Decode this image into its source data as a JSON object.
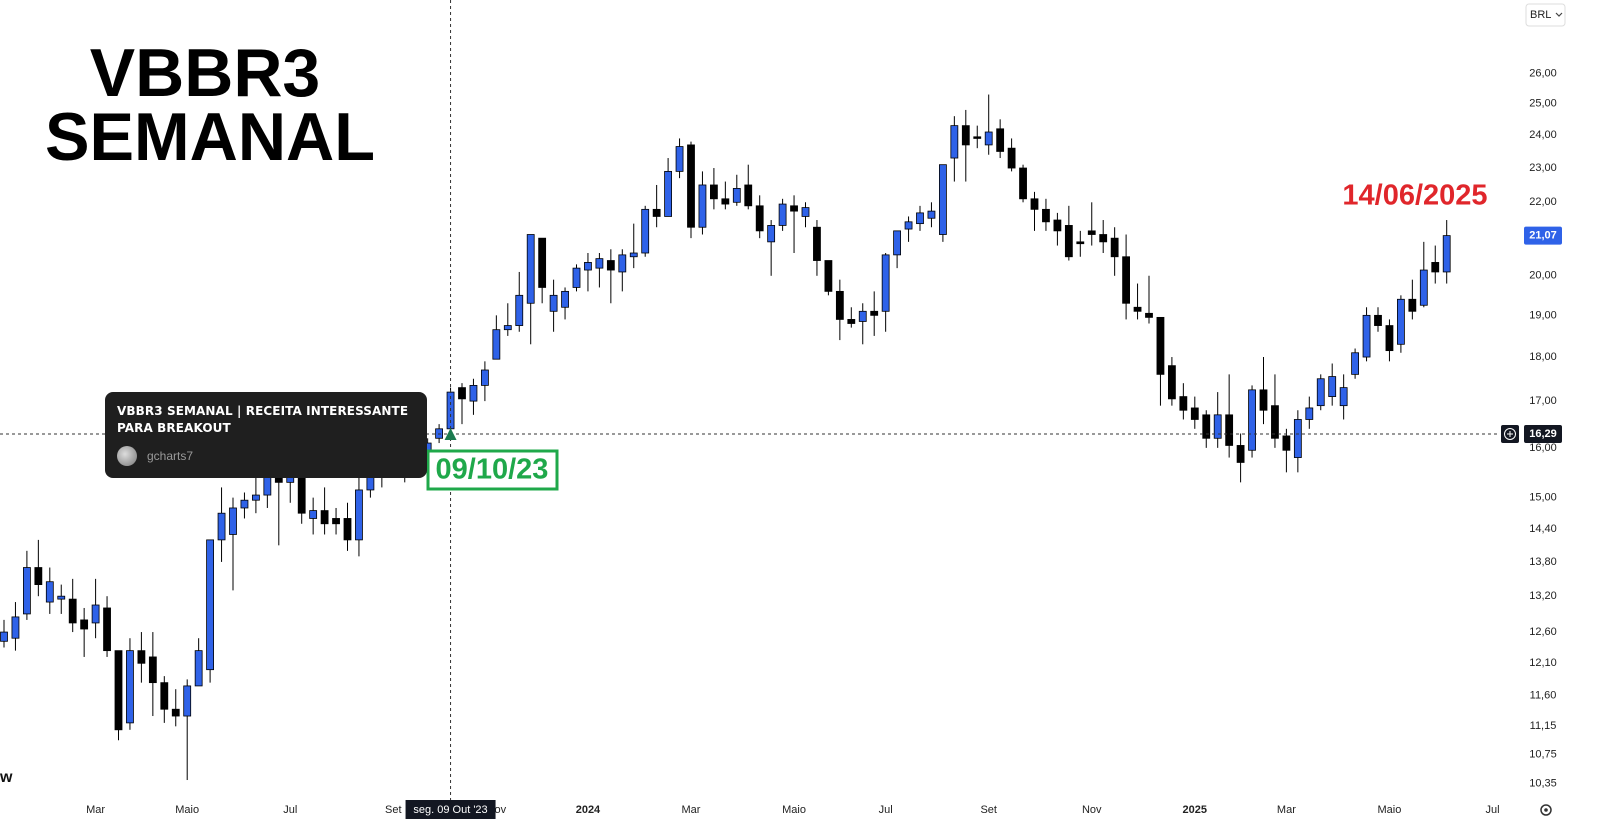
{
  "chart_data": {
    "type": "candlestick",
    "title": "VBBR3",
    "subtitle": "SEMANAL",
    "watermark": "w",
    "currency": "BRL",
    "log_scale": true,
    "grid": false,
    "up_color": "#2f62e8",
    "down_color": "#000000",
    "categories": [
      null,
      null,
      null,
      null,
      null,
      null,
      null,
      null,
      "Mar",
      null,
      null,
      null,
      null,
      null,
      null,
      null,
      "Maio",
      null,
      null,
      null,
      null,
      null,
      null,
      null,
      null,
      "Jul",
      null,
      null,
      null,
      null,
      null,
      null,
      null,
      null,
      "Set",
      null,
      null,
      null,
      null,
      null,
      null,
      null,
      null,
      "Nov",
      null,
      null,
      null,
      null,
      null,
      null,
      null,
      "2024",
      null,
      null,
      null,
      null,
      null,
      null,
      null,
      null,
      "Mar",
      null,
      null,
      null,
      null,
      null,
      null,
      null,
      null,
      "Maio",
      null,
      null,
      null,
      null,
      null,
      null,
      null,
      "Jul",
      null,
      null,
      null,
      null,
      null,
      null,
      null,
      null,
      "Set",
      null,
      null,
      null,
      null,
      null,
      null,
      null,
      null,
      "Nov",
      null,
      null,
      null,
      null,
      null,
      null,
      null,
      null,
      "2025",
      null,
      null,
      null,
      null,
      null,
      null,
      null,
      "Mar",
      null,
      null,
      null,
      null,
      null,
      null,
      null,
      null,
      "Maio",
      null,
      null,
      null,
      null,
      null,
      null,
      null,
      null,
      "Jul"
    ],
    "open": [
      12.45,
      12.5,
      12.9,
      13.7,
      13.1,
      13.15,
      13.15,
      12.8,
      12.75,
      13.0,
      12.3,
      11.2,
      12.3,
      12.2,
      11.8,
      11.4,
      11.3,
      11.75,
      12.0,
      14.2,
      14.3,
      14.8,
      14.95,
      15.05,
      15.45,
      15.3,
      15.4,
      14.6,
      14.75,
      14.6,
      14.6,
      14.2,
      15.15,
      15.4,
      15.6,
      15.8,
      15.6,
      15.9,
      16.2,
      16.4,
      17.3,
      17.0,
      17.35,
      17.95,
      18.65,
      18.75,
      19.3,
      21.0,
      19.1,
      19.2,
      19.7,
      20.15,
      20.2,
      20.4,
      20.1,
      20.5,
      20.6,
      21.8,
      21.6,
      22.9,
      23.7,
      21.3,
      22.5,
      22.1,
      22.0,
      22.5,
      21.9,
      20.9,
      21.35,
      21.9,
      21.6,
      21.3,
      20.4,
      19.6,
      18.9,
      18.85,
      19.1,
      19.1,
      20.55,
      21.25,
      21.4,
      21.55,
      21.1,
      23.3,
      24.3,
      23.95,
      23.7,
      24.2,
      23.6,
      23.0,
      22.1,
      21.8,
      21.5,
      21.35,
      20.9,
      21.2,
      21.1,
      21.0,
      20.5,
      19.2,
      19.05,
      18.95,
      17.8,
      17.1,
      16.85,
      16.7,
      16.2,
      16.7,
      16.05,
      15.95,
      17.25,
      16.9,
      16.25,
      15.8,
      16.6,
      16.9,
      17.1,
      16.9,
      17.6,
      18.0,
      19.0,
      18.75,
      18.3,
      19.4,
      19.25,
      20.35,
      20.1,
      null,
      null,
      null,
      null
    ],
    "high": [
      12.8,
      13.1,
      14.0,
      14.2,
      13.7,
      13.4,
      13.5,
      13.0,
      13.5,
      13.2,
      12.3,
      12.5,
      12.6,
      12.6,
      11.9,
      11.7,
      11.85,
      12.5,
      14.2,
      15.2,
      15.0,
      15.1,
      15.4,
      15.6,
      15.5,
      15.5,
      15.5,
      15.0,
      15.2,
      14.8,
      14.9,
      15.5,
      15.6,
      15.8,
      16.0,
      16.0,
      16.1,
      16.2,
      16.5,
      17.3,
      17.4,
      17.5,
      17.9,
      19.0,
      19.3,
      20.1,
      21.1,
      21.0,
      19.9,
      19.7,
      20.3,
      20.6,
      20.6,
      20.7,
      20.7,
      21.4,
      21.9,
      22.5,
      23.3,
      23.9,
      23.8,
      22.9,
      23.0,
      22.6,
      22.8,
      23.1,
      22.2,
      21.5,
      22.1,
      22.2,
      22.0,
      21.5,
      20.4,
      19.9,
      19.2,
      19.3,
      19.6,
      20.6,
      21.2,
      21.6,
      21.9,
      22.0,
      23.1,
      24.6,
      24.8,
      24.3,
      25.3,
      24.5,
      23.9,
      23.1,
      22.3,
      22.1,
      21.7,
      21.9,
      21.2,
      22.0,
      21.5,
      21.3,
      21.1,
      19.8,
      20.0,
      18.95,
      18.0,
      17.4,
      17.1,
      16.8,
      17.2,
      17.6,
      16.3,
      17.35,
      18.0,
      17.6,
      16.4,
      16.8,
      17.1,
      17.6,
      17.85,
      17.6,
      18.2,
      19.2,
      19.2,
      18.9,
      19.5,
      19.9,
      20.9,
      20.8,
      21.5,
      null,
      null,
      null,
      null
    ],
    "low": [
      12.35,
      12.3,
      12.8,
      13.2,
      12.9,
      12.9,
      12.6,
      12.2,
      12.5,
      12.2,
      10.95,
      11.1,
      11.8,
      11.3,
      11.2,
      11.15,
      10.4,
      11.75,
      11.8,
      13.8,
      13.3,
      14.6,
      14.7,
      14.8,
      14.1,
      14.9,
      14.5,
      14.3,
      14.3,
      14.3,
      14.0,
      13.9,
      15.0,
      15.2,
      15.4,
      15.3,
      15.5,
      15.8,
      16.1,
      16.2,
      16.5,
      16.7,
      17.0,
      17.95,
      18.5,
      18.6,
      18.3,
      19.3,
      18.6,
      18.9,
      19.6,
      19.6,
      19.7,
      19.3,
      19.6,
      20.2,
      20.5,
      21.3,
      21.6,
      22.7,
      21.0,
      21.1,
      21.8,
      21.8,
      21.9,
      21.8,
      21.0,
      20.0,
      21.2,
      20.6,
      21.3,
      20.0,
      19.5,
      18.4,
      18.7,
      18.3,
      18.5,
      18.6,
      20.2,
      20.9,
      21.2,
      21.3,
      20.9,
      22.6,
      22.6,
      23.6,
      23.4,
      23.3,
      22.9,
      22.0,
      21.2,
      21.2,
      20.8,
      20.4,
      20.5,
      20.8,
      20.6,
      20.0,
      18.9,
      18.9,
      18.8,
      16.9,
      16.9,
      16.6,
      16.4,
      16.0,
      16.0,
      15.8,
      15.3,
      15.8,
      16.5,
      16.0,
      15.5,
      15.5,
      16.4,
      16.8,
      16.9,
      16.6,
      17.5,
      17.9,
      18.6,
      17.9,
      18.1,
      18.9,
      19.2,
      19.8,
      19.8,
      null,
      null,
      null,
      null
    ],
    "close": [
      12.6,
      12.85,
      13.7,
      13.4,
      13.45,
      13.2,
      12.75,
      12.65,
      13.05,
      12.3,
      11.1,
      12.3,
      12.1,
      11.8,
      11.4,
      11.3,
      11.75,
      12.3,
      14.2,
      14.7,
      14.8,
      14.95,
      15.05,
      15.4,
      15.3,
      15.4,
      14.7,
      14.75,
      14.5,
      14.5,
      14.2,
      15.15,
      15.4,
      15.6,
      15.8,
      15.6,
      15.9,
      16.1,
      16.4,
      17.2,
      17.05,
      17.35,
      17.7,
      18.65,
      18.75,
      19.5,
      21.1,
      19.7,
      19.5,
      19.6,
      20.2,
      20.35,
      20.45,
      20.15,
      20.55,
      20.6,
      21.8,
      21.6,
      22.9,
      23.65,
      21.3,
      22.5,
      22.1,
      21.95,
      22.4,
      21.9,
      21.2,
      21.35,
      21.95,
      21.75,
      21.85,
      20.4,
      19.6,
      18.9,
      18.8,
      19.1,
      19.0,
      20.55,
      21.2,
      21.45,
      21.7,
      21.75,
      23.1,
      24.3,
      23.7,
      23.9,
      24.1,
      23.5,
      23.0,
      22.1,
      21.8,
      21.45,
      21.2,
      20.5,
      20.85,
      21.1,
      20.9,
      20.5,
      19.3,
      19.1,
      18.95,
      17.6,
      17.05,
      16.8,
      16.6,
      16.2,
      16.7,
      16.05,
      15.7,
      17.25,
      16.8,
      16.2,
      15.95,
      16.6,
      16.85,
      17.5,
      17.55,
      17.3,
      18.1,
      19.0,
      18.75,
      18.15,
      19.4,
      19.1,
      20.15,
      20.1,
      21.07,
      null,
      null,
      null,
      null
    ],
    "ylim": [
      10.2,
      28.6
    ],
    "yticks": [
      {
        "value": 26,
        "label": "26,00"
      },
      {
        "value": 25,
        "label": "25,00"
      },
      {
        "value": 24,
        "label": "24,00"
      },
      {
        "value": 23,
        "label": "23,00"
      },
      {
        "value": 22,
        "label": "22,00"
      },
      {
        "value": 20,
        "label": "20,00"
      },
      {
        "value": 19,
        "label": "19,00"
      },
      {
        "value": 18,
        "label": "18,00"
      },
      {
        "value": 17,
        "label": "17,00"
      },
      {
        "value": 16,
        "label": "16,00"
      },
      {
        "value": 15,
        "label": "15,00"
      },
      {
        "value": 14.4,
        "label": "14,40"
      },
      {
        "value": 13.8,
        "label": "13,80"
      },
      {
        "value": 13.2,
        "label": "13,20"
      },
      {
        "value": 12.6,
        "label": "12,60"
      },
      {
        "value": 12.1,
        "label": "12,10"
      },
      {
        "value": 11.6,
        "label": "11,60"
      },
      {
        "value": 11.15,
        "label": "11,15"
      },
      {
        "value": 10.75,
        "label": "10,75"
      },
      {
        "value": 10.35,
        "label": "10,35"
      }
    ],
    "last_price": {
      "value": 21.07,
      "label": "21,07",
      "color": "#2f62e8"
    },
    "crosshair": {
      "y": {
        "value": 16.29,
        "label": "16,29"
      },
      "x_label": "seg. 09 Out '23"
    },
    "annotations": [
      {
        "text": "09/10/23",
        "color": "#1fa84a"
      },
      {
        "text": "14/06/2025",
        "color": "#e0262b"
      }
    ],
    "tooltip": {
      "title": "VBBR3 SEMANAL | RECEITA INTERESSANTE PARA BREAKOUT",
      "author": "gcharts7"
    }
  }
}
